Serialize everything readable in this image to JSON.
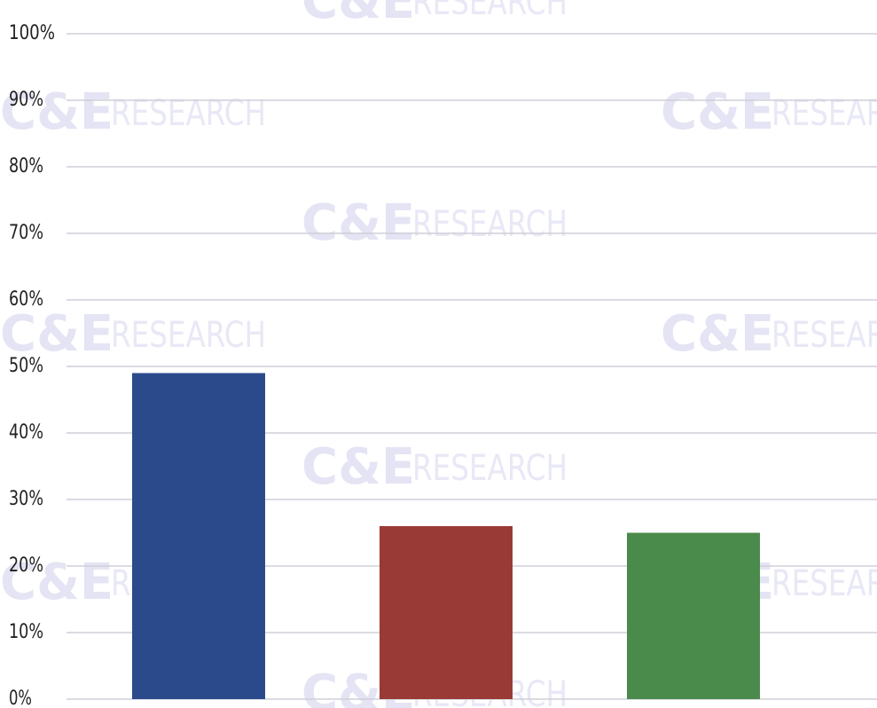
{
  "chart_data": {
    "type": "bar",
    "categories": [
      null,
      null,
      null
    ],
    "values": [
      49,
      26,
      25
    ],
    "colors": [
      "#2b4a8c",
      "#9a3a36",
      "#4a8a4a"
    ],
    "ylim": [
      0,
      100
    ],
    "yticks": [
      {
        "value": 0,
        "label": "0%"
      },
      {
        "value": 10,
        "label": "10%"
      },
      {
        "value": 20,
        "label": "20%"
      },
      {
        "value": 30,
        "label": "30%"
      },
      {
        "value": 40,
        "label": "40%"
      },
      {
        "value": 50,
        "label": "50%"
      },
      {
        "value": 60,
        "label": "60%"
      },
      {
        "value": 70,
        "label": "70%"
      },
      {
        "value": 80,
        "label": "80%"
      },
      {
        "value": 90,
        "label": "90%"
      },
      {
        "value": 100,
        "label": "100%"
      }
    ],
    "grid": true
  },
  "watermark": {
    "logo": "C&E",
    "word": "RESEARCH"
  }
}
